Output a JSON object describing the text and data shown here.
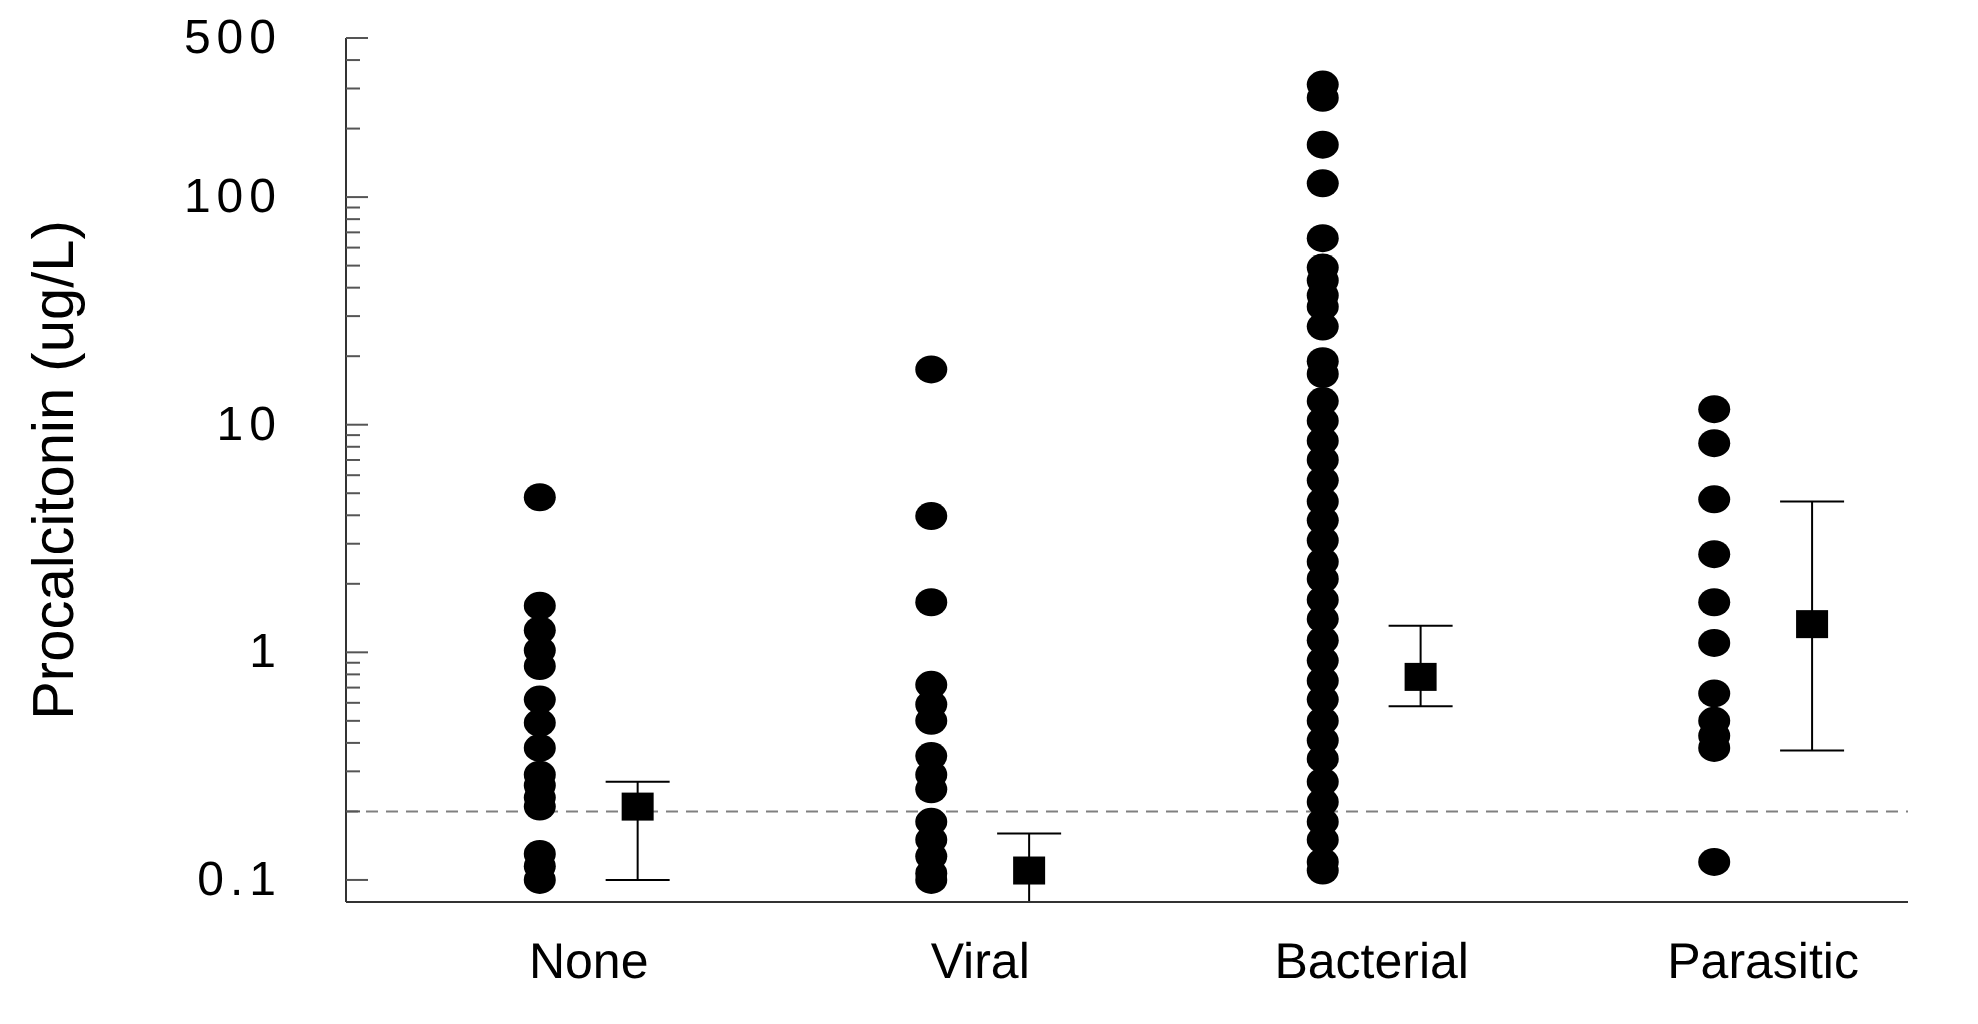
{
  "chart_data": {
    "type": "scatter",
    "ylabel": "Procalcitonin (ug/L)",
    "categories": [
      "None",
      "Viral",
      "Bacterial",
      "Parasitic"
    ],
    "log": "y",
    "ylim": [
      0.08,
      500
    ],
    "yticks": [
      0.1,
      {
        "value": 0.2,
        "label": null
      },
      {
        "value": 0.3,
        "label": null
      },
      {
        "value": 0.4,
        "label": null
      },
      {
        "value": 0.5,
        "label": null
      },
      {
        "value": 0.6,
        "label": null
      },
      {
        "value": 0.7,
        "label": null
      },
      {
        "value": 0.8,
        "label": null
      },
      {
        "value": 0.9,
        "label": null
      },
      1,
      {
        "value": 2,
        "label": null
      },
      {
        "value": 3,
        "label": null
      },
      {
        "value": 4,
        "label": null
      },
      {
        "value": 5,
        "label": null
      },
      {
        "value": 6,
        "label": null
      },
      {
        "value": 7,
        "label": null
      },
      {
        "value": 8,
        "label": null
      },
      {
        "value": 9,
        "label": null
      },
      10,
      {
        "value": 20,
        "label": null
      },
      {
        "value": 30,
        "label": null
      },
      {
        "value": 40,
        "label": null
      },
      {
        "value": 50,
        "label": null
      },
      {
        "value": 60,
        "label": null
      },
      {
        "value": 70,
        "label": null
      },
      {
        "value": 80,
        "label": null
      },
      {
        "value": 90,
        "label": null
      },
      100,
      {
        "value": 200,
        "label": null
      },
      {
        "value": 300,
        "label": null
      },
      {
        "value": 400,
        "label": null
      },
      500
    ],
    "ref_lines": [
      {
        "axis": "y",
        "value": 0.2,
        "color": "#808080",
        "line_style": "dashed"
      }
    ],
    "series": [
      {
        "marker": "circle",
        "color": "#000000",
        "x": [
          "None",
          "None",
          "None",
          "None",
          "None",
          "None",
          "None",
          "None",
          "None",
          "None",
          "None",
          "None",
          "None",
          "None",
          "None",
          "Viral",
          "Viral",
          "Viral",
          "Viral",
          "Viral",
          "Viral",
          "Viral",
          "Viral",
          "Viral",
          "Viral",
          "Viral",
          "Viral",
          "Viral",
          "Viral",
          "Bacterial",
          "Bacterial",
          "Bacterial",
          "Bacterial",
          "Bacterial",
          "Bacterial",
          "Bacterial",
          "Bacterial",
          "Bacterial",
          "Bacterial",
          "Bacterial",
          "Bacterial",
          "Bacterial",
          "Bacterial",
          "Bacterial",
          "Bacterial",
          "Bacterial",
          "Bacterial",
          "Bacterial",
          "Bacterial",
          "Bacterial",
          "Bacterial",
          "Bacterial",
          "Bacterial",
          "Bacterial",
          "Bacterial",
          "Bacterial",
          "Bacterial",
          "Bacterial",
          "Bacterial",
          "Bacterial",
          "Bacterial",
          "Bacterial",
          "Bacterial",
          "Bacterial",
          "Bacterial",
          "Bacterial",
          "Parasitic",
          "Parasitic",
          "Parasitic",
          "Parasitic",
          "Parasitic",
          "Parasitic",
          "Parasitic",
          "Parasitic",
          "Parasitic",
          "Parasitic",
          "Parasitic"
        ],
        "values": [
          4.8,
          1.6,
          1.25,
          1.02,
          0.87,
          0.62,
          0.49,
          0.38,
          0.29,
          0.26,
          0.23,
          0.21,
          0.13,
          0.115,
          0.1,
          17.5,
          3.97,
          1.66,
          0.72,
          0.59,
          0.5,
          0.35,
          0.29,
          0.25,
          0.18,
          0.15,
          0.127,
          0.107,
          0.1,
          312,
          273,
          170,
          115,
          66,
          49,
          43,
          37,
          33,
          27,
          19,
          16.7,
          12.7,
          10.4,
          8.5,
          7,
          5.7,
          4.6,
          3.8,
          3.1,
          2.5,
          2.1,
          1.7,
          1.4,
          1.13,
          0.92,
          0.75,
          0.62,
          0.5,
          0.41,
          0.34,
          0.27,
          0.22,
          0.18,
          0.15,
          0.12,
          0.11,
          11.7,
          8.3,
          4.7,
          2.7,
          1.66,
          1.1,
          0.66,
          0.5,
          0.43,
          0.38,
          0.12
        ]
      },
      {
        "marker": "square",
        "color": "#000000",
        "x": [
          "None",
          "Viral",
          "Bacterial",
          "Parasitic"
        ],
        "values": [
          0.21,
          0.11,
          0.78,
          1.33
        ],
        "errors": [
          [
            0.1,
            0.27
          ],
          [
            0.08,
            0.16
          ],
          [
            0.58,
            1.31
          ],
          [
            0.37,
            4.6
          ]
        ]
      }
    ]
  }
}
